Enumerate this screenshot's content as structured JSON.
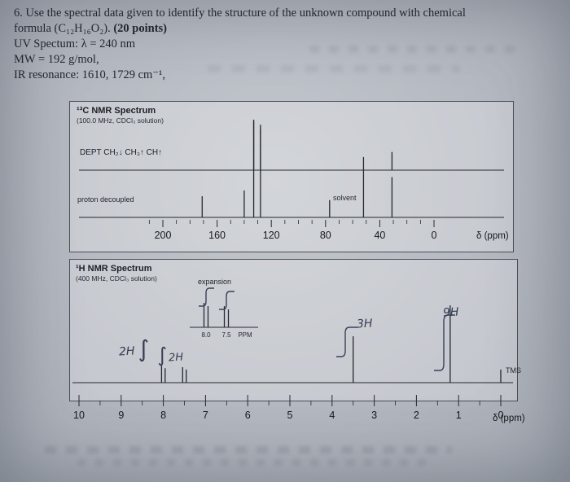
{
  "question": {
    "line1": "6. Use the spectral data given to identify the structure of the unknown compound with chemical",
    "line2a": "formula (C₁₂H₁₆O₂). ",
    "line2b": "(20 points)",
    "uv": "UV Spectum: λ = 240 nm",
    "mw": "MW = 192 g/mol,",
    "ir": "IR resonance: 1610, 1729 cm⁻¹,"
  },
  "chart_data": [
    {
      "type": "line",
      "name": "13C NMR spectrum",
      "title": "¹³C NMR Spectrum",
      "subtitle": "(100.0 MHz, CDCl₃ solution)",
      "dept_legend": "DEPT   CH₂↓  CH₃↑  CH↑",
      "decoupled_label": "proton decoupled",
      "solvent_label": "solvent",
      "xlabel": "δ (ppm)",
      "axis": {
        "unit": "ppm",
        "min": 0,
        "max": 220,
        "major_ticks": [
          200,
          160,
          120,
          80,
          40,
          0
        ],
        "minor_step": 10
      },
      "dept_peaks": [
        {
          "ppm": 133,
          "rel": 1.0,
          "phase": "up"
        },
        {
          "ppm": 128,
          "rel": 0.9,
          "phase": "up"
        },
        {
          "ppm": 52,
          "rel": 0.26,
          "phase": "up"
        },
        {
          "ppm": 31,
          "rel": 0.36,
          "phase": "up"
        }
      ],
      "decoupled_peaks": [
        {
          "ppm": 171,
          "rel": 0.22
        },
        {
          "ppm": 140,
          "rel": 0.28
        },
        {
          "ppm": 133,
          "rel": 1.0
        },
        {
          "ppm": 128,
          "rel": 0.92
        },
        {
          "ppm": 77,
          "rel": 0.18
        },
        {
          "ppm": 52,
          "rel": 0.5
        },
        {
          "ppm": 31,
          "rel": 0.42
        }
      ]
    },
    {
      "type": "line",
      "name": "1H NMR spectrum",
      "title": "¹H NMR Spectrum",
      "subtitle": "(400 MHz, CDCl₃ solution)",
      "xlabel": "δ (ppm)",
      "axis": {
        "unit": "ppm",
        "min": 0,
        "max": 10,
        "major_ticks": [
          10,
          9,
          8,
          7,
          6,
          5,
          4,
          3,
          2,
          1,
          0
        ],
        "minor_step": 0.5
      },
      "peaks": [
        {
          "ppm": 8.0,
          "rel": 0.22,
          "mult": "d",
          "assignment": "2H"
        },
        {
          "ppm": 7.5,
          "rel": 0.2,
          "mult": "d",
          "assignment": "2H"
        },
        {
          "ppm": 3.5,
          "rel": 0.6,
          "mult": "s",
          "assignment": "3H"
        },
        {
          "ppm": 1.2,
          "rel": 1.0,
          "mult": "s",
          "assignment": "9H"
        },
        {
          "ppm": 0.0,
          "rel": 0.17,
          "mult": "s",
          "assignment": "TMS"
        }
      ],
      "expansion": {
        "label": "expansion",
        "x_labels": [
          "8.0",
          "7.5"
        ],
        "unit": "PPM"
      },
      "annotations": {
        "integral_mark": "∫",
        "h2a": "2H",
        "h2b": "2H",
        "h3": "3H",
        "h9": "9H",
        "tms": "TMS"
      }
    }
  ]
}
